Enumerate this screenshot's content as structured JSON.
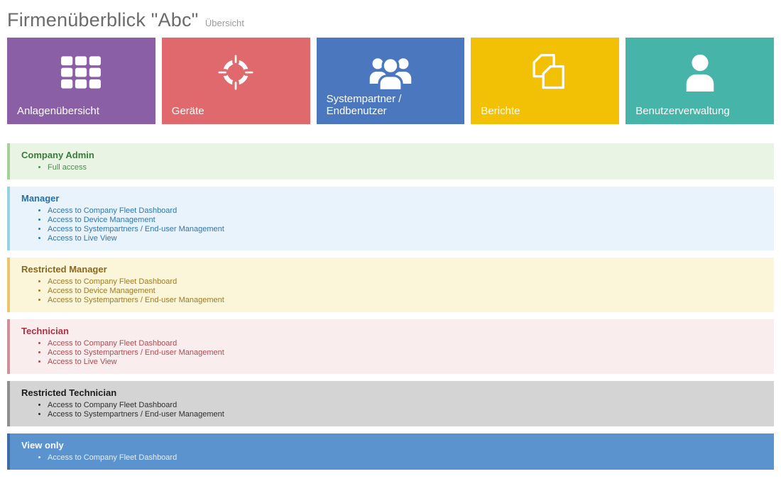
{
  "header": {
    "title": "Firmenüberblick \"Abc\"",
    "subtitle": "Übersicht"
  },
  "tiles": [
    {
      "label": "Anlagenübersicht",
      "color": "#8a5fa5",
      "icon": "grid-icon"
    },
    {
      "label": "Geräte",
      "color": "#e0696d",
      "icon": "crosshair-icon"
    },
    {
      "label": "Systempartner / Endbenutzer",
      "color": "#4a77bd",
      "icon": "users-icon"
    },
    {
      "label": "Berichte",
      "color": "#f2c004",
      "icon": "documents-icon"
    },
    {
      "label": "Benutzerverwaltung",
      "color": "#46b4a9",
      "icon": "user-icon"
    }
  ],
  "roles": [
    {
      "name": "Company Admin",
      "bg": "#e9f4e4",
      "border_color": "#a7cf9b",
      "title_color": "#3b7a3b",
      "text_color": "#4b8f4b",
      "permissions": [
        "Full access"
      ]
    },
    {
      "name": "Manager",
      "bg": "#e9f3fc",
      "border_color": "#95d3e0",
      "title_color": "#2471a8",
      "text_color": "#2e77ad",
      "permissions": [
        "Access to Company Fleet Dashboard",
        "Access to Device Management",
        "Access to Systempartners / End-user Management",
        "Access to Live View"
      ]
    },
    {
      "name": "Restricted Manager",
      "bg": "#fbf5da",
      "border_color": "#ecc46c",
      "title_color": "#8a681e",
      "text_color": "#9c7c26",
      "permissions": [
        "Access to Company Fleet Dashboard",
        "Access to Device Management",
        "Access to Systempartners / End-user Management"
      ]
    },
    {
      "name": "Technician",
      "bg": "#f9eded",
      "border_color": "#d18e9b",
      "title_color": "#ad2f44",
      "text_color": "#b04a55",
      "permissions": [
        "Access to Company Fleet Dashboard",
        "Access to Systempartners / End-user Management",
        "Access to Live View"
      ]
    },
    {
      "name": "Restricted Technician",
      "bg": "#d4d4d4",
      "border_color": "#8f8f8f",
      "title_color": "#1c1c1c",
      "text_color": "#2e2e2e",
      "permissions": [
        "Access to Company Fleet Dashboard",
        "Access to Systempartners / End-user Management"
      ]
    },
    {
      "name": "View only",
      "bg": "#5a93ce",
      "border_color": "#3e6da3",
      "title_color": "#ffffff",
      "text_color": "#e4eefb",
      "permissions": [
        "Access to Company Fleet Dashboard"
      ]
    }
  ]
}
